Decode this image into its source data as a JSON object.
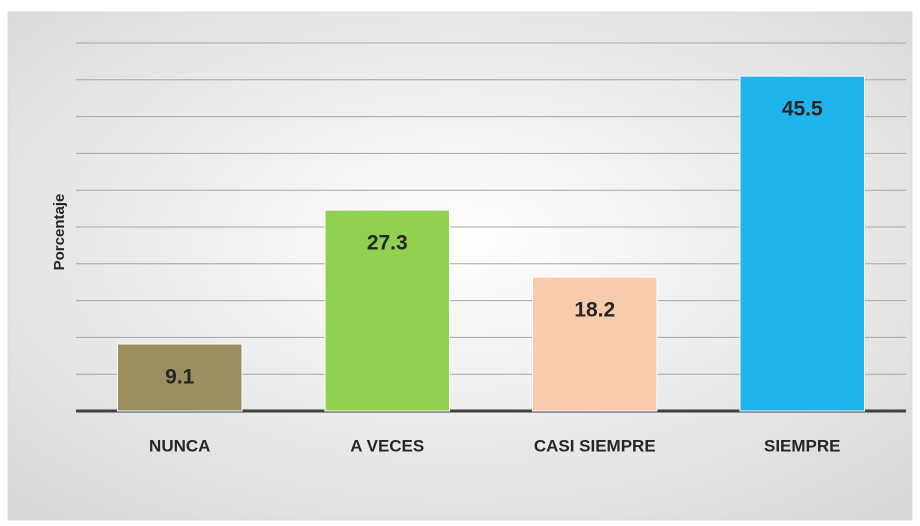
{
  "chart_data": {
    "type": "bar",
    "y_label": "Porcentaje",
    "categories": [
      "NUNCA",
      "A VECES",
      "CASI SIEMPRE",
      "SIEMPRE"
    ],
    "values": [
      9.1,
      27.3,
      18.2,
      45.5
    ],
    "colors": [
      "#9a8f5e",
      "#92d050",
      "#f8cbad",
      "#1fb4ec"
    ],
    "ylim": [
      0,
      50
    ],
    "yticks": [
      0,
      5,
      10,
      15,
      20,
      25,
      30,
      35,
      40,
      45,
      50
    ],
    "grid": true
  }
}
